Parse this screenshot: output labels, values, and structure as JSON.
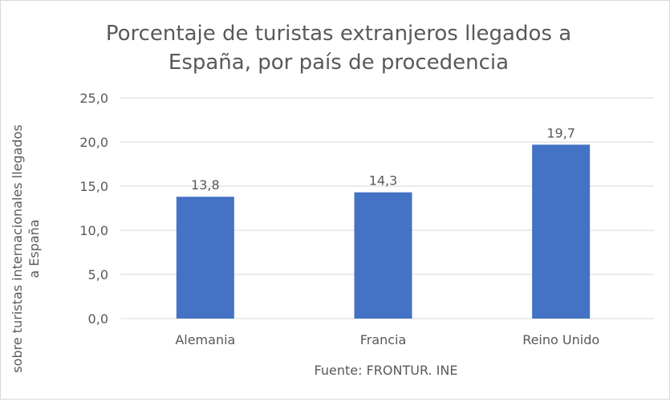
{
  "chart_data": {
    "type": "bar",
    "title_lines": [
      "Porcentaje de turistas extranjeros llegados a",
      "España, por país de procedencia"
    ],
    "ylabel_lines": [
      "sobre turistas internacionales llegados",
      "a España"
    ],
    "xlabel": "Fuente: FRONTUR. INE",
    "categories": [
      "Alemania",
      "Francia",
      "Reino Unido"
    ],
    "values": [
      13.8,
      14.3,
      19.7
    ],
    "data_labels": [
      "13,8",
      "14,3",
      "19,7"
    ],
    "ylim": [
      0,
      25
    ],
    "yticks": [
      0,
      5,
      10,
      15,
      20,
      25
    ],
    "ytick_labels": [
      "0,0",
      "5,0",
      "10,0",
      "15,0",
      "20,0",
      "25,0"
    ],
    "grid": true,
    "bar_color": "#4472c4"
  }
}
